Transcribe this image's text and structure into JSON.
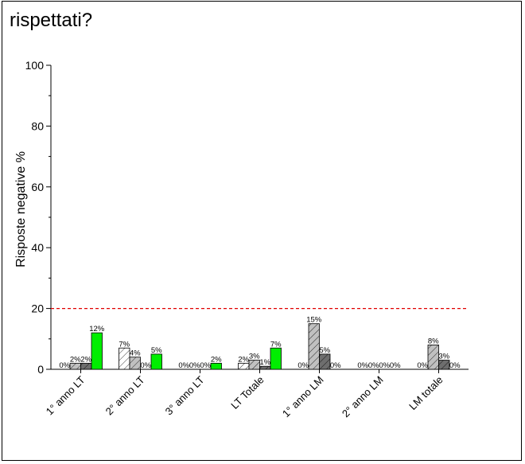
{
  "heading": "rispettati?",
  "chart_data": {
    "type": "bar",
    "ylabel": "Risposte negative %",
    "xlabel": "",
    "ylim": [
      0,
      100
    ],
    "yticks": [
      0,
      20,
      40,
      60,
      80,
      100
    ],
    "grid": false,
    "categories": [
      "1° anno LT",
      "2° anno LT",
      "3° anno LT",
      "LT Totale",
      "1° anno LM",
      "2° anno LM",
      "LM totale"
    ],
    "series": [
      {
        "values": [
          0,
          7,
          0,
          2,
          0,
          0,
          0
        ],
        "labels": [
          "0%",
          "7%",
          "0%",
          "2%",
          "0%",
          "0%",
          "0%"
        ],
        "fill": "#ffffff",
        "hatch": true
      },
      {
        "values": [
          2,
          4,
          0,
          3,
          15,
          0,
          8
        ],
        "labels": [
          "2%",
          "4%",
          "0%",
          "3%",
          "15%",
          "0%",
          "8%"
        ],
        "fill": "#c0c0c0",
        "hatch": true
      },
      {
        "values": [
          2,
          0,
          0,
          1,
          5,
          0,
          3
        ],
        "labels": [
          "2%",
          "0%",
          "0%",
          "1%",
          "5%",
          "0%",
          "3%"
        ],
        "fill": "#6e6e6e",
        "hatch": true
      },
      {
        "values": [
          12,
          5,
          2,
          7,
          0,
          0,
          0
        ],
        "labels": [
          "12%",
          "5%",
          "2%",
          "7%",
          "0%",
          "0%",
          "0%"
        ],
        "fill": "#00ee00",
        "hatch": false
      }
    ],
    "reference_line": {
      "value": 20,
      "color": "#e00000",
      "style": "dashed"
    }
  }
}
